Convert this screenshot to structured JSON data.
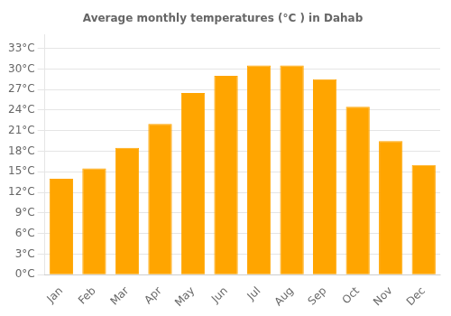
{
  "chart_data": {
    "type": "bar",
    "title": "Average monthly temperatures (°C ) in Dahab",
    "categories": [
      "Jan",
      "Feb",
      "Mar",
      "Apr",
      "May",
      "Jun",
      "Jul",
      "Aug",
      "Sep",
      "Oct",
      "Nov",
      "Dec"
    ],
    "values": [
      14.0,
      15.5,
      18.5,
      22.0,
      26.5,
      29.0,
      30.5,
      30.5,
      28.5,
      24.5,
      19.5,
      16.0
    ],
    "color": "#FFA500",
    "ylim": [
      0,
      35
    ],
    "yticks": [
      {
        "value": 0,
        "label": "0°C"
      },
      {
        "value": 3,
        "label": "3°C"
      },
      {
        "value": 6,
        "label": "6°C"
      },
      {
        "value": 9,
        "label": "9°C"
      },
      {
        "value": 12,
        "label": "12°C"
      },
      {
        "value": 15,
        "label": "15°C"
      },
      {
        "value": 18,
        "label": "18°C"
      },
      {
        "value": 21,
        "label": "21°C"
      },
      {
        "value": 24,
        "label": "24°C"
      },
      {
        "value": 27,
        "label": "27°C"
      },
      {
        "value": 30,
        "label": "30°C"
      },
      {
        "value": 33,
        "label": "33°C"
      }
    ],
    "grid": true
  }
}
